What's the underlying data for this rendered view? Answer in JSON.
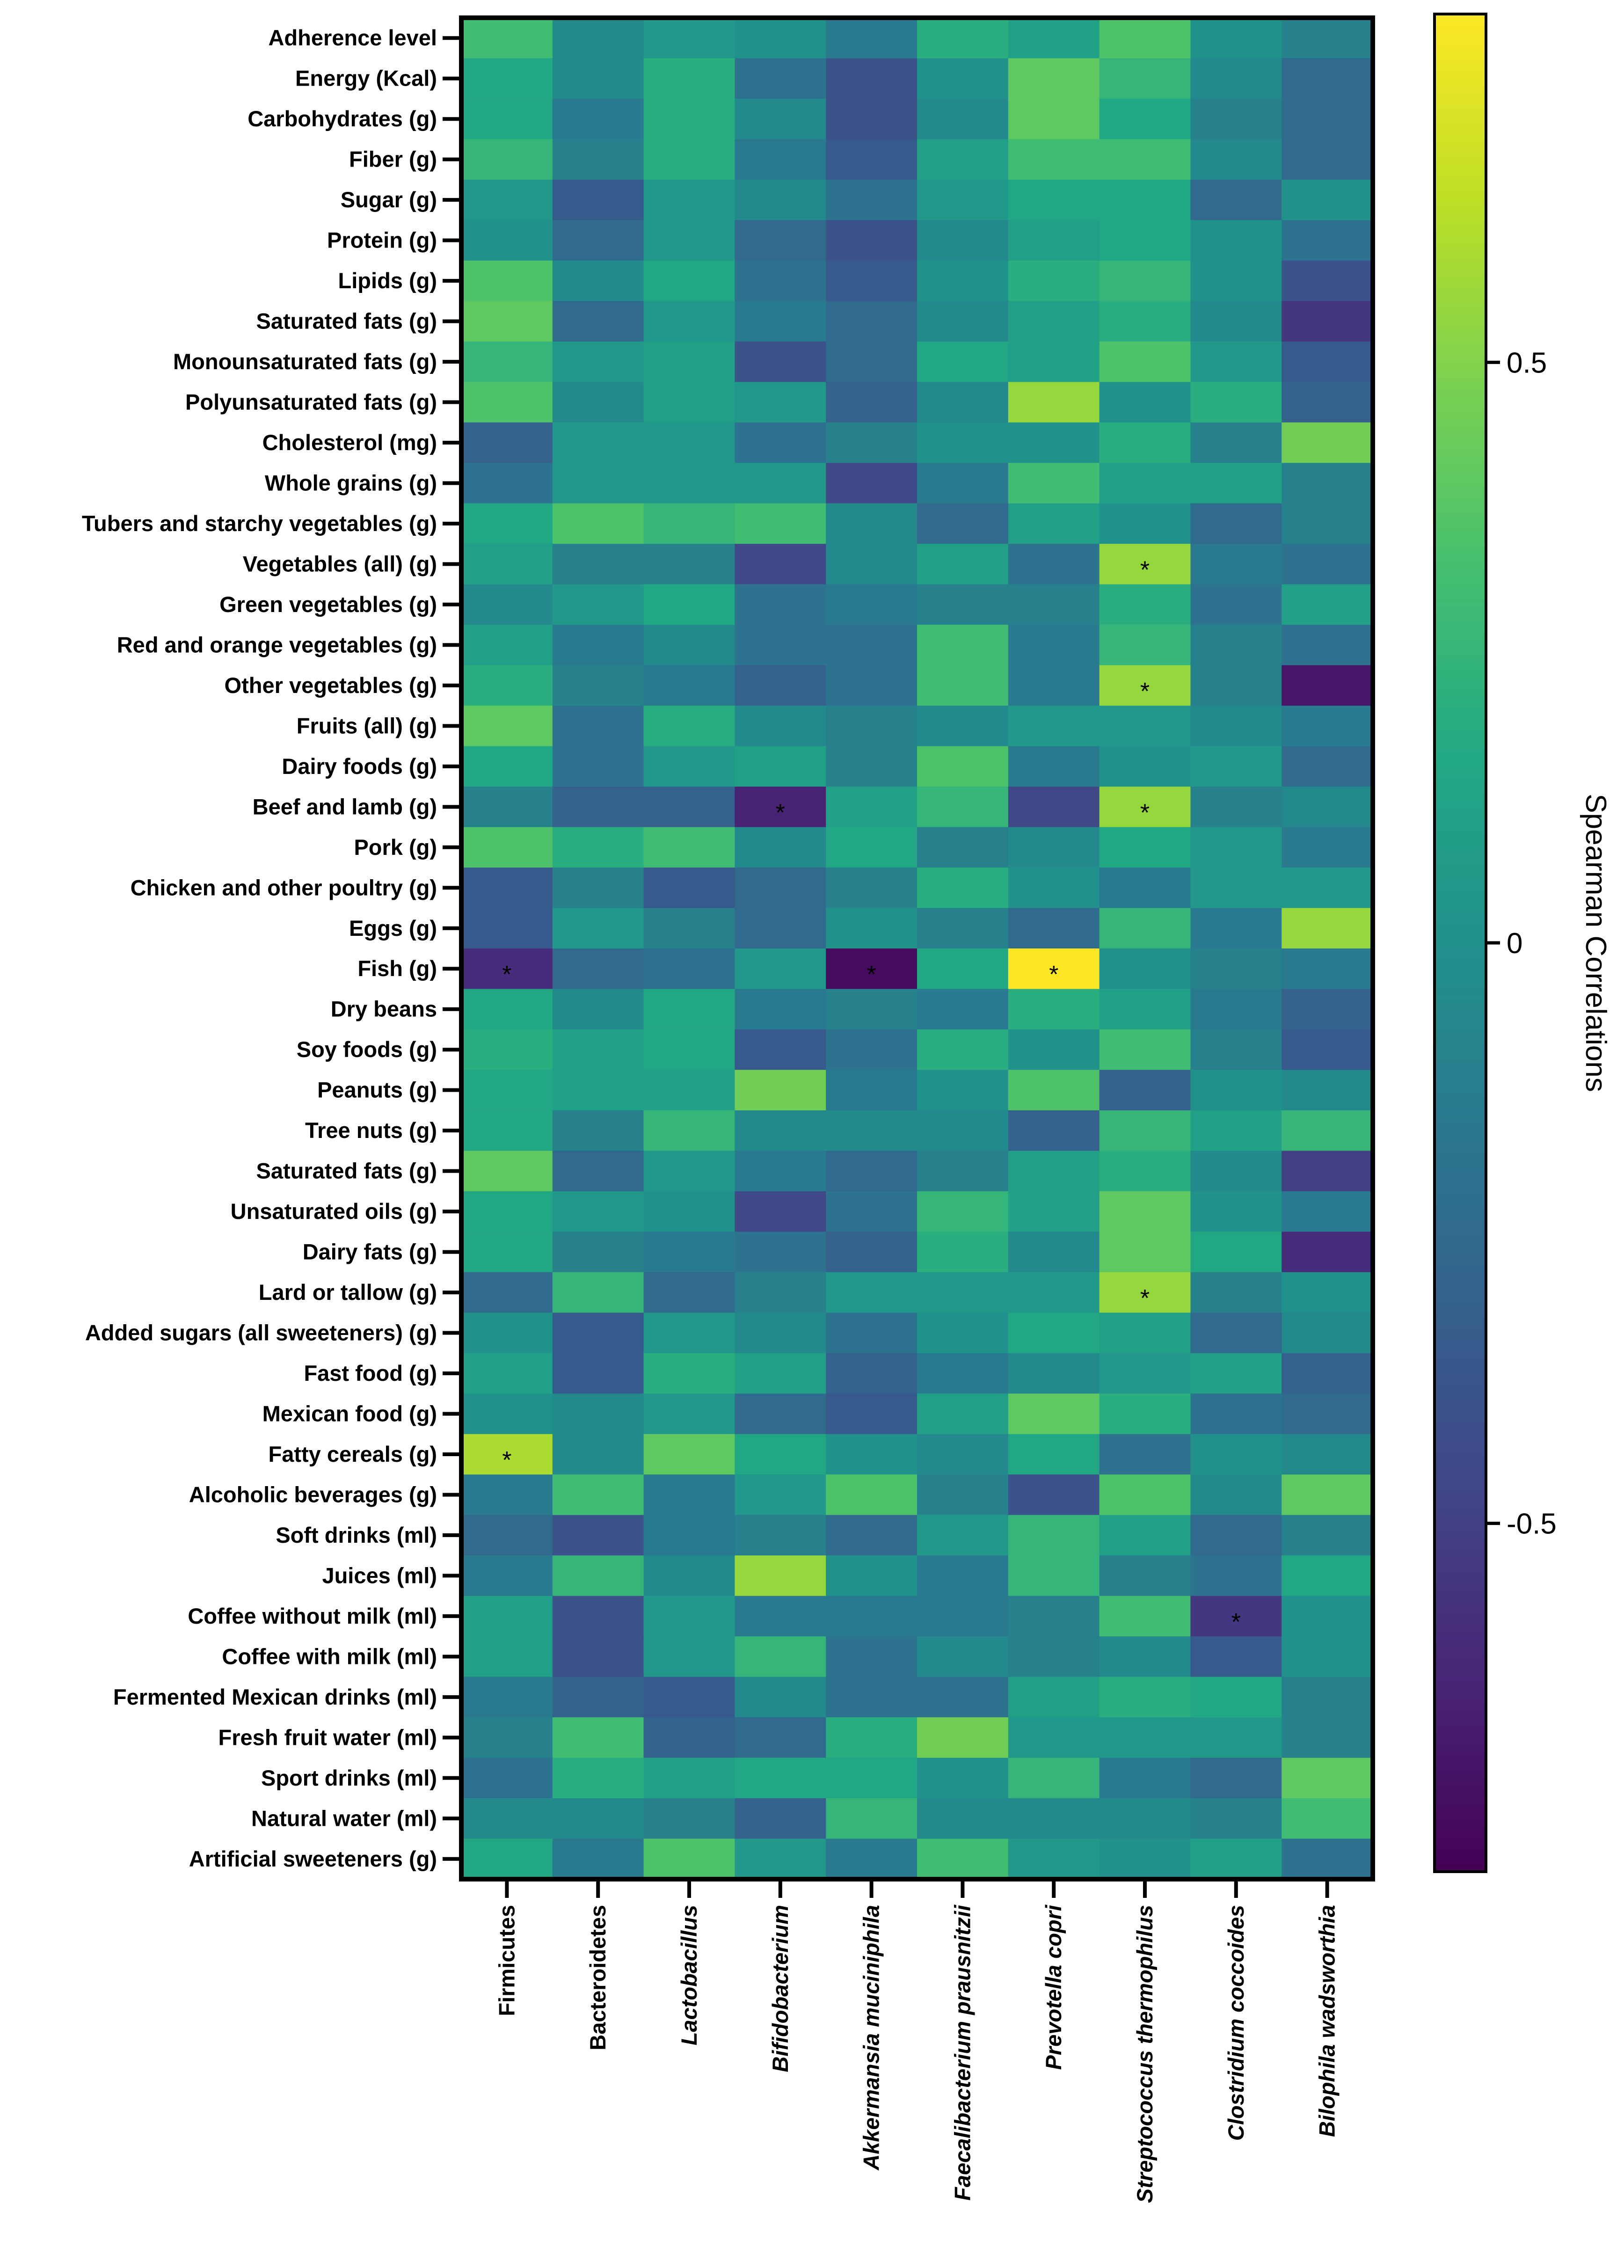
{
  "chart_data": {
    "type": "heatmap",
    "title": "",
    "rows": [
      "Adherence level",
      "Energy (Kcal)",
      "Carbohydrates (g)",
      "Fiber (g)",
      "Sugar (g)",
      "Protein (g)",
      "Lipids (g)",
      "Saturated fats (g)",
      "Monounsaturated fats (g)",
      "Polyunsaturated fats (g)",
      "Cholesterol (mg)",
      "Whole grains (g)",
      "Tubers and starchy vegetables (g)",
      "Vegetables (all) (g)",
      "Green vegetables (g)",
      "Red and orange vegetables (g)",
      "Other vegetables (g)",
      "Fruits (all) (g)",
      "Dairy foods (g)",
      "Beef and lamb (g)",
      "Pork (g)",
      "Chicken and other poultry (g)",
      "Eggs (g)",
      "Fish (g)",
      "Dry beans",
      "Soy foods (g)",
      "Peanuts (g)",
      "Tree nuts (g)",
      "Saturated fats (g)",
      "Unsaturated oils (g)",
      "Dairy fats (g)",
      "Lard or tallow (g)",
      "Added sugars (all sweeteners) (g)",
      "Fast food (g)",
      "Mexican food (g)",
      "Fatty cereals (g)",
      "Alcoholic beverages (g)",
      "Soft drinks (ml)",
      "Juices (ml)",
      "Coffee without milk (ml)",
      "Coffee with milk (ml)",
      "Fermented Mexican drinks (ml)",
      "Fresh fruit water (ml)",
      "Sport drinks (ml)",
      "Natural water (ml)",
      "Artificial sweeteners (g)"
    ],
    "columns": [
      {
        "label": "Firmicutes",
        "italic": false
      },
      {
        "label": "Bacteroidetes",
        "italic": false
      },
      {
        "label": "Lactobacillus",
        "italic": true
      },
      {
        "label": "Bifidobacterium",
        "italic": true
      },
      {
        "label": "Akkermansia muciniphila",
        "italic": true
      },
      {
        "label": "Faecalibacterium prausnitzii",
        "italic": true
      },
      {
        "label": "Prevotella copri",
        "italic": true
      },
      {
        "label": "Streptococcus thermophilus",
        "italic": true
      },
      {
        "label": "Clostridium coccoides",
        "italic": true
      },
      {
        "label": "Bilophila wadsworthia",
        "italic": true
      }
    ],
    "values": [
      [
        0.3,
        -0.05,
        0.05,
        0.0,
        -0.15,
        0.2,
        0.1,
        0.35,
        0.0,
        -0.1
      ],
      [
        0.15,
        -0.05,
        0.2,
        -0.2,
        -0.4,
        0.0,
        0.4,
        0.25,
        -0.05,
        -0.25
      ],
      [
        0.15,
        -0.15,
        0.2,
        -0.05,
        -0.4,
        -0.05,
        0.4,
        0.15,
        -0.1,
        -0.25
      ],
      [
        0.25,
        -0.1,
        0.2,
        -0.15,
        -0.35,
        0.1,
        0.3,
        0.3,
        -0.05,
        -0.25
      ],
      [
        0.05,
        -0.35,
        0.05,
        -0.05,
        -0.2,
        0.05,
        0.15,
        0.15,
        -0.25,
        0.0
      ],
      [
        0.0,
        -0.25,
        0.05,
        -0.25,
        -0.4,
        -0.05,
        0.1,
        0.15,
        0.0,
        -0.2
      ],
      [
        0.35,
        -0.05,
        0.15,
        -0.2,
        -0.35,
        0.0,
        0.2,
        0.25,
        0.0,
        -0.4
      ],
      [
        0.4,
        -0.25,
        0.05,
        -0.15,
        -0.25,
        -0.05,
        0.1,
        0.2,
        -0.05,
        -0.55
      ],
      [
        0.25,
        0.05,
        0.1,
        -0.4,
        -0.25,
        0.15,
        0.1,
        0.35,
        0.05,
        -0.35
      ],
      [
        0.35,
        -0.05,
        0.1,
        0.05,
        -0.3,
        -0.05,
        0.55,
        0.0,
        0.2,
        -0.3
      ],
      [
        -0.3,
        0.05,
        0.05,
        -0.2,
        -0.1,
        0.0,
        0.0,
        0.2,
        -0.1,
        0.45
      ],
      [
        -0.2,
        0.05,
        0.05,
        0.05,
        -0.45,
        -0.15,
        0.3,
        0.1,
        0.1,
        -0.1
      ],
      [
        0.15,
        0.35,
        0.25,
        0.3,
        -0.05,
        -0.25,
        0.1,
        0.0,
        -0.25,
        -0.1
      ],
      [
        0.1,
        -0.1,
        -0.1,
        -0.45,
        -0.05,
        0.1,
        -0.2,
        0.55,
        -0.15,
        -0.2
      ],
      [
        -0.05,
        0.05,
        0.15,
        -0.2,
        -0.15,
        -0.1,
        -0.1,
        0.2,
        -0.2,
        0.1
      ],
      [
        0.1,
        -0.15,
        -0.05,
        -0.2,
        -0.2,
        0.3,
        -0.15,
        0.25,
        -0.1,
        -0.2
      ],
      [
        0.2,
        -0.1,
        -0.15,
        -0.3,
        -0.2,
        0.3,
        -0.15,
        0.55,
        -0.1,
        -0.7
      ],
      [
        0.4,
        -0.2,
        0.2,
        -0.05,
        -0.1,
        -0.05,
        0.05,
        0.05,
        -0.05,
        -0.15
      ],
      [
        0.15,
        -0.2,
        0.05,
        0.1,
        -0.1,
        0.35,
        -0.15,
        0.0,
        0.05,
        -0.25
      ],
      [
        -0.1,
        -0.3,
        -0.3,
        -0.65,
        0.1,
        0.25,
        -0.45,
        0.55,
        -0.1,
        -0.05
      ],
      [
        0.35,
        0.2,
        0.3,
        -0.05,
        0.15,
        -0.1,
        -0.05,
        0.15,
        0.05,
        -0.15
      ],
      [
        -0.35,
        -0.1,
        -0.35,
        -0.25,
        -0.1,
        0.2,
        0.0,
        -0.15,
        0.05,
        0.05
      ],
      [
        -0.35,
        0.05,
        -0.1,
        -0.25,
        0.0,
        -0.1,
        -0.25,
        0.25,
        -0.15,
        0.55
      ],
      [
        -0.6,
        -0.25,
        -0.2,
        0.05,
        -0.75,
        0.15,
        0.8,
        0.0,
        -0.1,
        -0.15
      ],
      [
        0.15,
        -0.05,
        0.15,
        -0.15,
        -0.1,
        -0.15,
        0.2,
        0.1,
        -0.15,
        -0.3
      ],
      [
        0.2,
        0.1,
        0.15,
        -0.35,
        -0.2,
        0.2,
        0.0,
        0.3,
        -0.1,
        -0.35
      ],
      [
        0.15,
        0.1,
        0.1,
        0.45,
        -0.15,
        0.0,
        0.35,
        -0.3,
        0.0,
        -0.05
      ],
      [
        0.15,
        -0.1,
        0.25,
        -0.05,
        -0.05,
        -0.05,
        -0.3,
        0.25,
        0.1,
        0.25
      ],
      [
        0.4,
        -0.25,
        0.05,
        -0.15,
        -0.25,
        -0.1,
        0.1,
        0.2,
        -0.05,
        -0.5
      ],
      [
        0.15,
        0.05,
        0.0,
        -0.45,
        -0.2,
        0.25,
        0.1,
        0.4,
        0.0,
        -0.15
      ],
      [
        0.15,
        -0.1,
        -0.15,
        -0.2,
        -0.3,
        0.2,
        -0.05,
        0.4,
        0.15,
        -0.6
      ],
      [
        -0.25,
        0.25,
        -0.25,
        -0.1,
        0.05,
        0.05,
        0.05,
        0.55,
        -0.1,
        0.0
      ],
      [
        0.0,
        -0.35,
        0.05,
        -0.05,
        -0.2,
        0.0,
        0.15,
        0.1,
        -0.25,
        -0.05
      ],
      [
        0.1,
        -0.35,
        0.2,
        0.1,
        -0.3,
        -0.15,
        -0.05,
        0.05,
        0.1,
        -0.3
      ],
      [
        0.0,
        -0.05,
        0.05,
        -0.25,
        -0.35,
        0.1,
        0.4,
        0.2,
        -0.2,
        -0.25
      ],
      [
        0.6,
        -0.05,
        0.4,
        0.15,
        0.0,
        -0.05,
        0.15,
        -0.2,
        0.0,
        -0.05
      ],
      [
        -0.15,
        0.3,
        -0.15,
        0.05,
        0.35,
        -0.1,
        -0.4,
        0.35,
        -0.05,
        0.4
      ],
      [
        -0.25,
        -0.4,
        -0.15,
        -0.1,
        -0.25,
        0.05,
        0.25,
        0.1,
        -0.25,
        -0.1
      ],
      [
        -0.15,
        0.25,
        -0.05,
        0.55,
        0.0,
        -0.15,
        0.25,
        -0.1,
        -0.2,
        0.15
      ],
      [
        0.1,
        -0.4,
        0.05,
        -0.15,
        -0.15,
        -0.15,
        -0.1,
        0.3,
        -0.55,
        0.0
      ],
      [
        0.1,
        -0.4,
        0.05,
        0.25,
        -0.2,
        -0.05,
        -0.1,
        -0.05,
        -0.35,
        0.0
      ],
      [
        -0.15,
        -0.3,
        -0.35,
        -0.05,
        -0.2,
        -0.2,
        0.1,
        0.2,
        0.15,
        -0.1
      ],
      [
        -0.1,
        0.3,
        -0.3,
        -0.25,
        0.2,
        0.45,
        0.05,
        0.05,
        0.05,
        -0.1
      ],
      [
        -0.2,
        0.2,
        0.1,
        0.15,
        0.15,
        0.0,
        0.25,
        -0.15,
        -0.25,
        0.4
      ],
      [
        -0.05,
        -0.05,
        -0.1,
        -0.3,
        0.25,
        -0.05,
        -0.05,
        -0.05,
        -0.1,
        0.3
      ],
      [
        0.15,
        -0.15,
        0.35,
        0.05,
        -0.15,
        0.3,
        0.05,
        0.0,
        0.1,
        -0.2
      ]
    ],
    "significant": [
      [
        13,
        7
      ],
      [
        16,
        7
      ],
      [
        19,
        3
      ],
      [
        19,
        7
      ],
      [
        23,
        0
      ],
      [
        23,
        4
      ],
      [
        23,
        6
      ],
      [
        31,
        7
      ],
      [
        35,
        0
      ],
      [
        39,
        8
      ]
    ],
    "significance_marker": "*",
    "colorbar": {
      "title": "Spearman Correlations",
      "range": [
        -0.8,
        0.8
      ],
      "ticks": [
        0.5,
        0,
        -0.5
      ],
      "tick_labels": [
        "0.5",
        "0",
        "-0.5"
      ],
      "colormap": "viridis",
      "stops": [
        "#440154",
        "#482475",
        "#414487",
        "#355f8d",
        "#2a788e",
        "#21918c",
        "#22a884",
        "#44bf70",
        "#7ad151",
        "#bddf26",
        "#fde725"
      ]
    }
  }
}
